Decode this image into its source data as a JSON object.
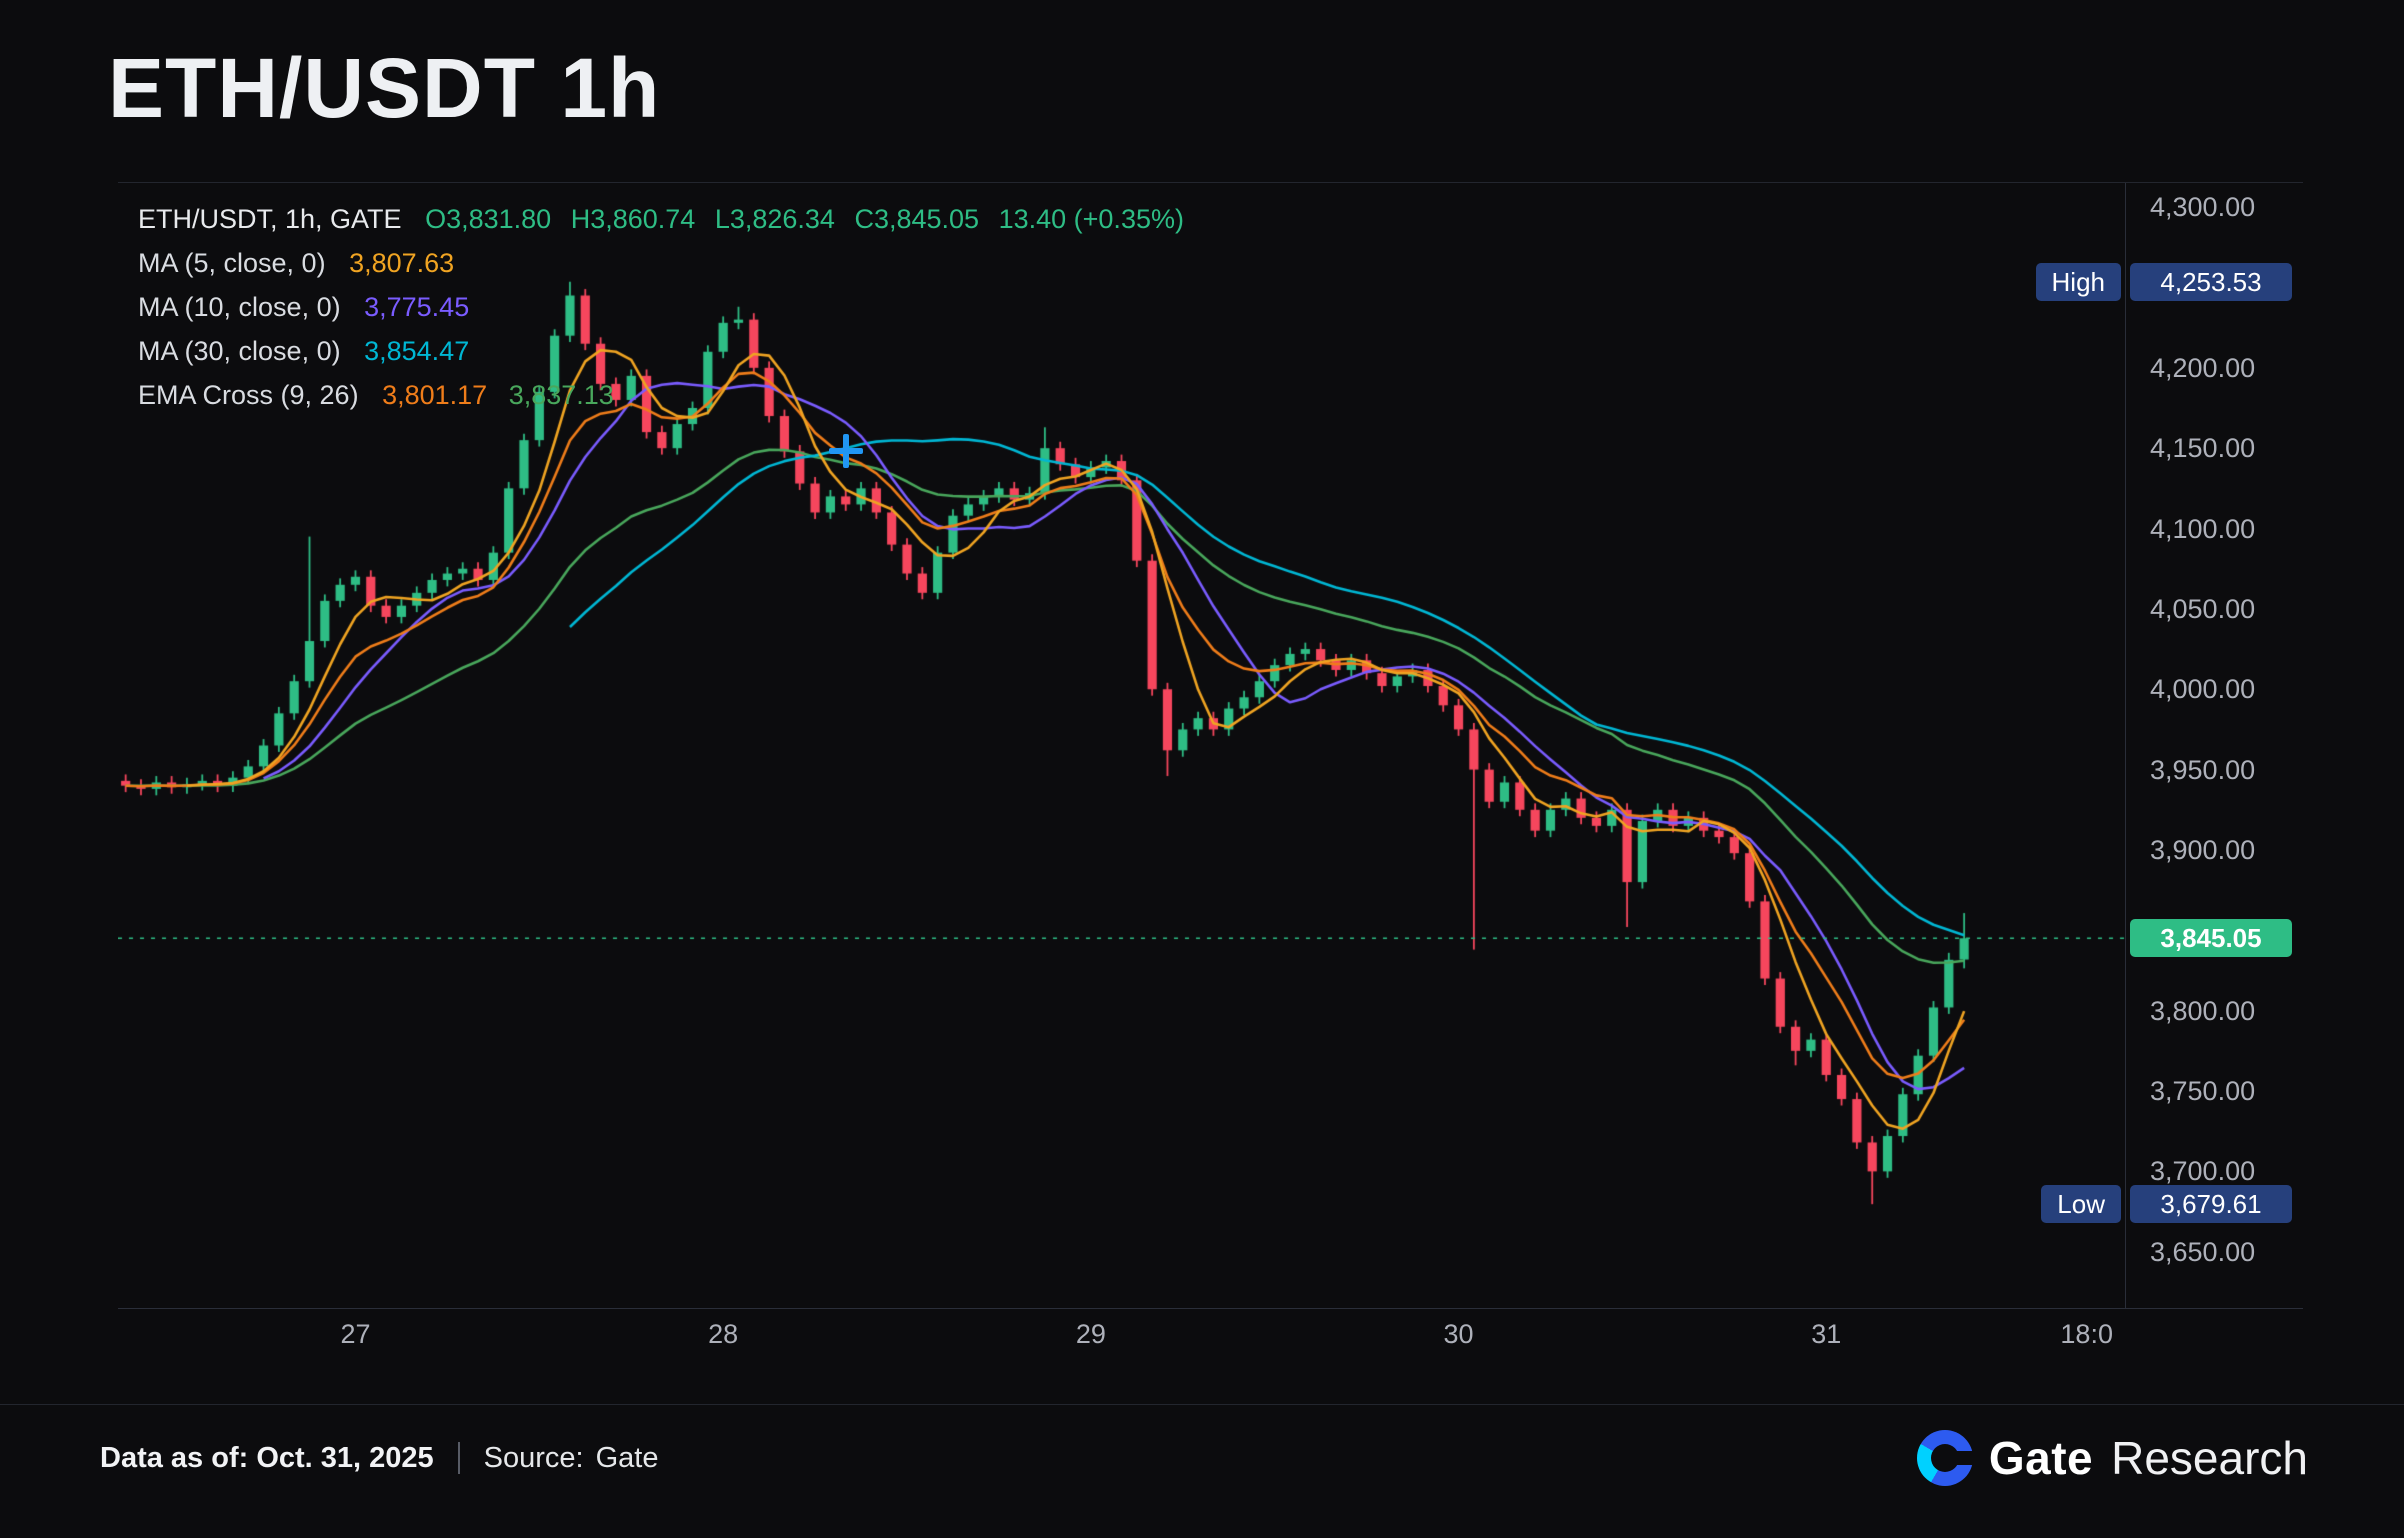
{
  "page": {
    "title": "ETH/USDT 1h",
    "footer": {
      "data_as_of": "Data as of: Oct. 31, 2025",
      "source_label": "Source:",
      "source_value": "Gate",
      "brand_name": "Gate",
      "brand_suffix": "Research"
    }
  },
  "legend": {
    "symbol": "ETH/USDT, 1h, GATE",
    "o": "O3,831.80",
    "h": "H3,860.74",
    "l": "L3,826.34",
    "c": "C3,845.05",
    "change": "13.40 (+0.35%)",
    "ma5_label": "MA (5, close, 0)",
    "ma5_value": "3,807.63",
    "ma10_label": "MA (10, close, 0)",
    "ma10_value": "3,775.45",
    "ma30_label": "MA (30, close, 0)",
    "ma30_value": "3,854.47",
    "ema_label": "EMA Cross (9, 26)",
    "ema_value1": "3,801.17",
    "ema_value2": "3,837.13"
  },
  "badges": {
    "high_label": "High",
    "high_value": "4,253.53",
    "high_price": 4253.53,
    "low_label": "Low",
    "low_value": "3,679.61",
    "low_price": 3679.61,
    "last_label": "3,845.05",
    "last_price": 3845.05
  },
  "colors": {
    "accent_green": "#2ebd85",
    "accent_red": "#f6465d",
    "badge_navy": "#26407c",
    "ma5": "#f0a422",
    "ma10": "#7a5cff",
    "ma30": "#00b7d4",
    "ema9": "#ef7d1a",
    "ema26": "#49a75c",
    "axis_text": "#aeb1ba",
    "crosshair_blue": "#2196f3",
    "gate_blue": "#2d5bf0",
    "gate_cyan": "#00d1ff"
  },
  "chart_data": {
    "type": "candlestick",
    "title": "ETH/USDT 1h",
    "symbol": "ETH/USDT",
    "interval": "1h",
    "exchange": "GATE",
    "xlabel": "",
    "ylabel": "",
    "grid": false,
    "legend_position": "top-left",
    "ohlc_current": {
      "open": 3831.8,
      "high": 3860.74,
      "low": 3826.34,
      "close": 3845.05,
      "change": 13.4,
      "change_pct": "+0.35%"
    },
    "period_high": 4253.53,
    "period_low": 3679.61,
    "last_price": 3845.05,
    "ylim": [
      3615,
      4315
    ],
    "total_slots": 131,
    "y_ticks": [
      {
        "price": 4300,
        "label": "4,300.00"
      },
      {
        "price": 4200,
        "label": "4,200.00"
      },
      {
        "price": 4150,
        "label": "4,150.00"
      },
      {
        "price": 4100,
        "label": "4,100.00"
      },
      {
        "price": 4050,
        "label": "4,050.00"
      },
      {
        "price": 4000,
        "label": "4,000.00"
      },
      {
        "price": 3950,
        "label": "3,950.00"
      },
      {
        "price": 3900,
        "label": "3,900.00"
      },
      {
        "price": 3800,
        "label": "3,800.00"
      },
      {
        "price": 3750,
        "label": "3,750.00"
      },
      {
        "price": 3700,
        "label": "3,700.00"
      },
      {
        "price": 3650,
        "label": "3,650.00"
      }
    ],
    "x_ticks": [
      {
        "slot": 15,
        "label": "27"
      },
      {
        "slot": 39,
        "label": "28"
      },
      {
        "slot": 63,
        "label": "29"
      },
      {
        "slot": 87,
        "label": "30"
      },
      {
        "slot": 111,
        "label": "31"
      },
      {
        "slot": 128,
        "label": "18:0"
      }
    ],
    "overlays": [
      {
        "name": "EMA 26",
        "type": "ema",
        "period": 26,
        "color": "#49a75c",
        "value": 3837.13
      },
      {
        "name": "MA 30",
        "type": "sma",
        "period": 30,
        "color": "#00b7d4",
        "value": 3854.47
      },
      {
        "name": "MA 10",
        "type": "sma",
        "period": 10,
        "color": "#7a5cff",
        "value": 3775.45
      },
      {
        "name": "EMA 9",
        "type": "ema",
        "period": 9,
        "color": "#ef7d1a",
        "value": 3801.17
      },
      {
        "name": "MA 5",
        "type": "sma",
        "period": 5,
        "color": "#f0a422",
        "value": 3807.63
      }
    ],
    "crosshair": {
      "slot": 47,
      "price": 4148
    },
    "candles": [
      [
        3943,
        3947,
        3936,
        3940
      ],
      [
        3940,
        3944,
        3934,
        3938
      ],
      [
        3938,
        3946,
        3934,
        3942
      ],
      [
        3942,
        3946,
        3935,
        3939
      ],
      [
        3939,
        3945,
        3935,
        3941
      ],
      [
        3941,
        3947,
        3937,
        3943
      ],
      [
        3943,
        3947,
        3936,
        3940
      ],
      [
        3940,
        3949,
        3936,
        3945
      ],
      [
        3945,
        3956,
        3941,
        3952
      ],
      [
        3952,
        3969,
        3948,
        3965
      ],
      [
        3965,
        3989,
        3961,
        3985
      ],
      [
        3985,
        4009,
        3981,
        4005
      ],
      [
        4005,
        4095,
        4001,
        4030
      ],
      [
        4030,
        4059,
        4026,
        4055
      ],
      [
        4055,
        4069,
        4051,
        4065
      ],
      [
        4065,
        4074,
        4061,
        4070
      ],
      [
        4070,
        4074,
        4048,
        4052
      ],
      [
        4052,
        4056,
        4041,
        4045
      ],
      [
        4045,
        4056,
        4041,
        4052
      ],
      [
        4052,
        4064,
        4048,
        4060
      ],
      [
        4060,
        4072,
        4056,
        4068
      ],
      [
        4068,
        4076,
        4064,
        4072
      ],
      [
        4072,
        4079,
        4068,
        4075
      ],
      [
        4075,
        4079,
        4064,
        4068
      ],
      [
        4068,
        4089,
        4064,
        4085
      ],
      [
        4085,
        4129,
        4081,
        4125
      ],
      [
        4125,
        4159,
        4121,
        4155
      ],
      [
        4155,
        4189,
        4151,
        4185
      ],
      [
        4185,
        4224,
        4181,
        4220
      ],
      [
        4220,
        4253.53,
        4216,
        4245
      ],
      [
        4245,
        4249,
        4211,
        4215
      ],
      [
        4215,
        4219,
        4186,
        4190
      ],
      [
        4190,
        4194,
        4176,
        4180
      ],
      [
        4180,
        4199,
        4176,
        4195
      ],
      [
        4195,
        4199,
        4156,
        4160
      ],
      [
        4160,
        4164,
        4146,
        4150
      ],
      [
        4150,
        4169,
        4146,
        4165
      ],
      [
        4165,
        4179,
        4161,
        4175
      ],
      [
        4175,
        4214,
        4171,
        4210
      ],
      [
        4210,
        4232,
        4206,
        4228
      ],
      [
        4228,
        4238,
        4224,
        4230
      ],
      [
        4230,
        4234,
        4196,
        4200
      ],
      [
        4200,
        4204,
        4166,
        4170
      ],
      [
        4170,
        4174,
        4144,
        4148
      ],
      [
        4148,
        4152,
        4124,
        4128
      ],
      [
        4128,
        4132,
        4106,
        4110
      ],
      [
        4110,
        4124,
        4106,
        4120
      ],
      [
        4120,
        4124,
        4111,
        4115
      ],
      [
        4115,
        4129,
        4111,
        4125
      ],
      [
        4125,
        4129,
        4106,
        4110
      ],
      [
        4110,
        4114,
        4086,
        4090
      ],
      [
        4090,
        4094,
        4068,
        4072
      ],
      [
        4072,
        4076,
        4056,
        4060
      ],
      [
        4060,
        4089,
        4056,
        4085
      ],
      [
        4085,
        4112,
        4081,
        4108
      ],
      [
        4108,
        4119,
        4104,
        4115
      ],
      [
        4115,
        4124,
        4111,
        4120
      ],
      [
        4120,
        4129,
        4116,
        4125
      ],
      [
        4125,
        4129,
        4114,
        4118
      ],
      [
        4118,
        4126,
        4114,
        4122
      ],
      [
        4122,
        4163,
        4118,
        4150
      ],
      [
        4150,
        4154,
        4136,
        4140
      ],
      [
        4140,
        4144,
        4128,
        4132
      ],
      [
        4132,
        4142,
        4128,
        4138
      ],
      [
        4138,
        4146,
        4134,
        4142
      ],
      [
        4142,
        4146,
        4126,
        4130
      ],
      [
        4130,
        4134,
        4076,
        4080
      ],
      [
        4080,
        4084,
        3996,
        4000
      ],
      [
        4000,
        4004,
        3946,
        3962
      ],
      [
        3962,
        3979,
        3958,
        3975
      ],
      [
        3975,
        3986,
        3971,
        3982
      ],
      [
        3982,
        3986,
        3971,
        3975
      ],
      [
        3975,
        3992,
        3971,
        3988
      ],
      [
        3988,
        3999,
        3984,
        3995
      ],
      [
        3995,
        4009,
        3991,
        4005
      ],
      [
        4005,
        4019,
        4001,
        4015
      ],
      [
        4015,
        4026,
        4011,
        4022
      ],
      [
        4022,
        4029,
        4018,
        4025
      ],
      [
        4025,
        4029,
        4014,
        4018
      ],
      [
        4018,
        4022,
        4008,
        4012
      ],
      [
        4012,
        4022,
        4008,
        4018
      ],
      [
        4018,
        4022,
        4006,
        4010
      ],
      [
        4010,
        4014,
        3998,
        4002
      ],
      [
        4002,
        4012,
        3998,
        4008
      ],
      [
        4008,
        4016,
        4004,
        4012
      ],
      [
        4012,
        4016,
        3998,
        4002
      ],
      [
        4002,
        4006,
        3986,
        3990
      ],
      [
        3990,
        3994,
        3971,
        3975
      ],
      [
        3975,
        3979,
        3838,
        3950
      ],
      [
        3950,
        3954,
        3926,
        3930
      ],
      [
        3930,
        3946,
        3926,
        3942
      ],
      [
        3942,
        3946,
        3921,
        3925
      ],
      [
        3925,
        3929,
        3908,
        3912
      ],
      [
        3912,
        3929,
        3908,
        3925
      ],
      [
        3925,
        3936,
        3921,
        3932
      ],
      [
        3932,
        3936,
        3916,
        3920
      ],
      [
        3920,
        3924,
        3911,
        3915
      ],
      [
        3915,
        3929,
        3911,
        3925
      ],
      [
        3925,
        3929,
        3852,
        3880
      ],
      [
        3880,
        3922,
        3876,
        3918
      ],
      [
        3918,
        3929,
        3914,
        3925
      ],
      [
        3925,
        3929,
        3911,
        3915
      ],
      [
        3915,
        3924,
        3911,
        3920
      ],
      [
        3920,
        3924,
        3908,
        3912
      ],
      [
        3912,
        3916,
        3904,
        3908
      ],
      [
        3908,
        3912,
        3894,
        3898
      ],
      [
        3898,
        3902,
        3864,
        3868
      ],
      [
        3868,
        3872,
        3816,
        3820
      ],
      [
        3820,
        3824,
        3786,
        3790
      ],
      [
        3790,
        3794,
        3766,
        3775
      ],
      [
        3775,
        3786,
        3771,
        3782
      ],
      [
        3782,
        3786,
        3756,
        3760
      ],
      [
        3760,
        3764,
        3741,
        3745
      ],
      [
        3745,
        3749,
        3714,
        3718
      ],
      [
        3718,
        3722,
        3679.61,
        3700
      ],
      [
        3700,
        3726,
        3696,
        3722
      ],
      [
        3722,
        3752,
        3718,
        3748
      ],
      [
        3748,
        3776,
        3744,
        3772
      ],
      [
        3772,
        3806,
        3768,
        3802
      ],
      [
        3802,
        3836,
        3798,
        3831.65
      ],
      [
        3831.8,
        3860.74,
        3826.34,
        3845.05
      ]
    ]
  }
}
